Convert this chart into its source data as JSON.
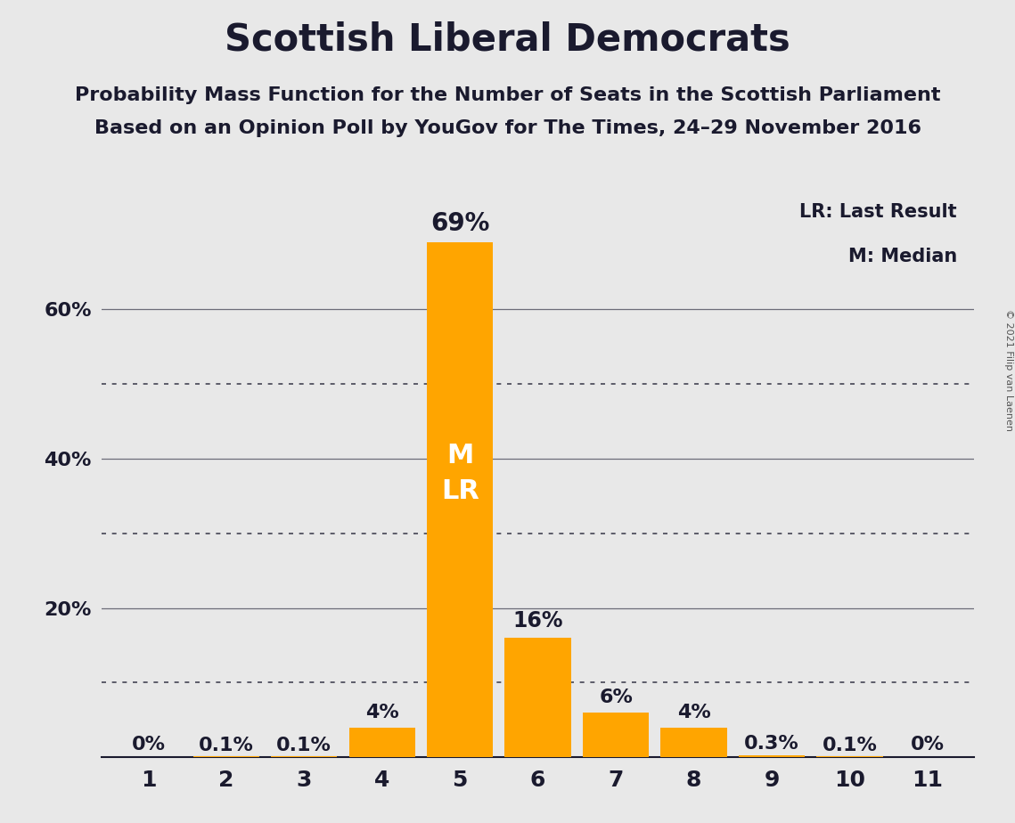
{
  "title": "Scottish Liberal Democrats",
  "subtitle1": "Probability Mass Function for the Number of Seats in the Scottish Parliament",
  "subtitle2": "Based on an Opinion Poll by YouGov for The Times, 24–29 November 2016",
  "copyright": "© 2021 Filip van Laenen",
  "categories": [
    1,
    2,
    3,
    4,
    5,
    6,
    7,
    8,
    9,
    10,
    11
  ],
  "values": [
    0.0,
    0.1,
    0.1,
    4.0,
    69.0,
    16.0,
    6.0,
    4.0,
    0.3,
    0.1,
    0.0
  ],
  "labels": [
    "0%",
    "0.1%",
    "0.1%",
    "4%",
    "69%",
    "16%",
    "6%",
    "4%",
    "0.3%",
    "0.1%",
    "0%"
  ],
  "bar_color": "#FFA500",
  "background_color": "#E8E8E8",
  "text_color": "#1a1a2e",
  "median_seat": 5,
  "last_result_seat": 5,
  "ylim": [
    0,
    75
  ],
  "legend_lr": "LR: Last Result",
  "legend_m": "M: Median",
  "title_fontsize": 30,
  "subtitle_fontsize": 16,
  "bar_label_fontsize": 16,
  "axis_label_fontsize": 16,
  "inside_label_fontsize": 22,
  "solid_grid": [
    20,
    40,
    60
  ],
  "dotted_grid": [
    10,
    30,
    50
  ],
  "ytick_positions": [
    20,
    40,
    60
  ],
  "ytick_labels": [
    "20%",
    "40%",
    "60%"
  ]
}
